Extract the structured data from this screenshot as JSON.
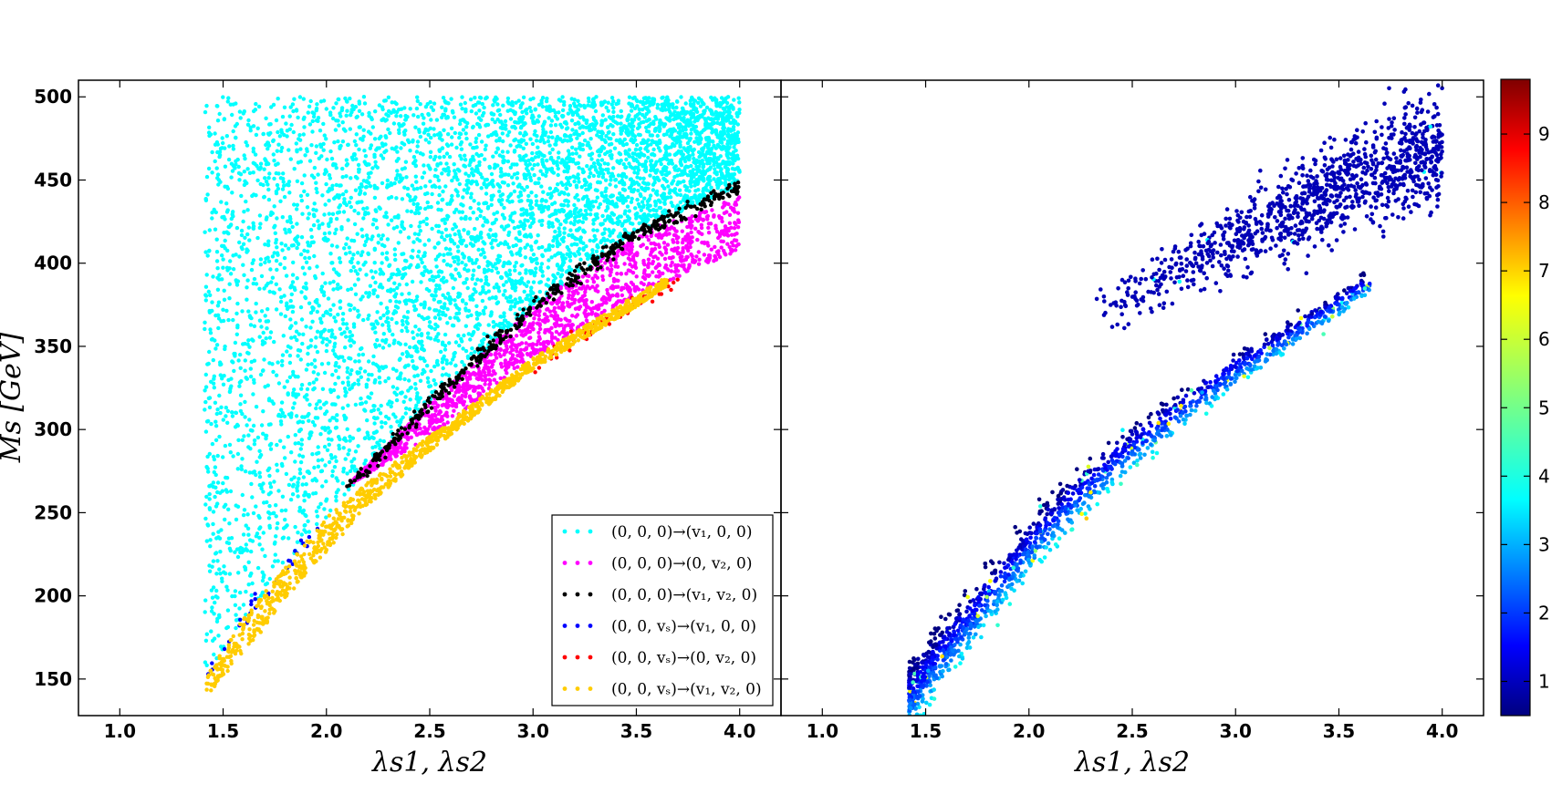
{
  "chart_data": [
    {
      "type": "scatter",
      "panel": "left",
      "xlabel": "λs1, λs2",
      "ylabel": "Ms [GeV]",
      "xlim": [
        0.8,
        4.2
      ],
      "ylim": [
        128,
        510
      ],
      "x_ticks": [
        "1.0",
        "1.5",
        "2.0",
        "2.5",
        "3.0",
        "3.5",
        "4.0"
      ],
      "y_ticks": [
        "150",
        "200",
        "250",
        "300",
        "350",
        "400",
        "450",
        "500"
      ],
      "legend_position": "bottom-right",
      "series": [
        {
          "name": "(0,0,0)→(v1,0,0)",
          "color": "#00ffff",
          "region": {
            "x": [
              1.41,
              4.0
            ],
            "y_upper": 500,
            "y_lower_curve": [
              [
                1.41,
                150
              ],
              [
                1.6,
                187
              ],
              [
                1.8,
                217
              ],
              [
                2.0,
                247
              ],
              [
                2.2,
                276
              ],
              [
                2.5,
                316
              ],
              [
                3.0,
                374
              ],
              [
                3.5,
                418
              ],
              [
                4.0,
                447
              ]
            ]
          }
        },
        {
          "name": "(0,0,0)→(0,v2,0)",
          "color": "#ff00ff",
          "region": {
            "x": [
              2.13,
              4.0
            ],
            "y_upper_curve": [
              [
                2.13,
                270
              ],
              [
                2.5,
                316
              ],
              [
                3.0,
                374
              ],
              [
                3.5,
                418
              ],
              [
                4.0,
                440
              ]
            ],
            "y_lower_curve": [
              [
                2.13,
                268
              ],
              [
                2.5,
                296
              ],
              [
                3.0,
                343
              ],
              [
                3.5,
                381
              ],
              [
                4.0,
                408
              ]
            ]
          }
        },
        {
          "name": "(0,0,0)→(v1,v2,0)",
          "color": "#000000",
          "band": [
            [
              2.1,
              266
            ],
            [
              2.2,
              276
            ],
            [
              2.5,
              316
            ],
            [
              3.0,
              374
            ],
            [
              3.5,
              418
            ],
            [
              4.0,
              446
            ]
          ]
        },
        {
          "name": "(0,0,vs)→(v1,0,0)",
          "color": "#0000ff",
          "band": [
            [
              1.42,
              152
            ],
            [
              1.6,
              187
            ],
            [
              1.8,
              217
            ],
            [
              2.0,
              247
            ]
          ]
        },
        {
          "name": "(0,0,vs)→(0,v2,0)",
          "color": "#ff0000",
          "band": [
            [
              3.0,
              338
            ],
            [
              3.2,
              354
            ],
            [
              3.5,
              376
            ],
            [
              3.7,
              390
            ]
          ]
        },
        {
          "name": "(0,0,vs)→(v1,v2,0)",
          "color": "#ffcc00",
          "region": {
            "x": [
              1.42,
              3.65
            ],
            "y_upper_curve": [
              [
                1.42,
                152
              ],
              [
                1.6,
                187
              ],
              [
                1.8,
                217
              ],
              [
                2.0,
                247
              ],
              [
                2.2,
                268
              ],
              [
                2.5,
                296
              ],
              [
                3.0,
                343
              ],
              [
                3.5,
                381
              ],
              [
                3.65,
                392
              ]
            ],
            "y_lower_curve": [
              [
                1.42,
                140
              ],
              [
                1.6,
                165
              ],
              [
                1.8,
                197
              ],
              [
                2.0,
                226
              ],
              [
                2.2,
                254
              ],
              [
                2.5,
                287
              ],
              [
                3.0,
                336
              ],
              [
                3.5,
                374
              ],
              [
                3.65,
                386
              ]
            ]
          }
        }
      ]
    },
    {
      "type": "scatter",
      "panel": "right",
      "xlabel": "λs1, λs2",
      "xlim": [
        0.8,
        4.2
      ],
      "ylim": [
        128,
        510
      ],
      "x_ticks": [
        "1.0",
        "1.5",
        "2.0",
        "2.5",
        "3.0",
        "3.5",
        "4.0"
      ],
      "colormap": "jet",
      "colorbar": {
        "range": [
          0.5,
          9.8
        ],
        "ticks": [
          "1",
          "2",
          "3",
          "4",
          "5",
          "6",
          "7",
          "8",
          "9"
        ]
      },
      "series": [
        {
          "cluster": "upper",
          "color_value": 1,
          "band": [
            [
              2.3,
              372
            ],
            [
              2.6,
              388
            ],
            [
              3.0,
              413
            ],
            [
              3.5,
              447
            ],
            [
              4.0,
              469
            ]
          ],
          "spread": 17
        },
        {
          "cluster": "lower",
          "color_value_range": [
            1.5,
            7
          ],
          "band": [
            [
              1.42,
              140
            ],
            [
              1.5,
              152
            ],
            [
              1.6,
              169
            ],
            [
              1.8,
              199
            ],
            [
              2.0,
              230
            ],
            [
              2.2,
              256
            ],
            [
              2.5,
              290
            ],
            [
              3.0,
              336
            ],
            [
              3.5,
              376
            ],
            [
              3.65,
              388
            ]
          ],
          "spread": 6
        }
      ]
    }
  ],
  "legend": {
    "entries": [
      {
        "text": "(0, 0, 0)→(v₁, 0, 0)",
        "color": "#00ffff"
      },
      {
        "text": "(0, 0, 0)→(0, v₂, 0)",
        "color": "#ff00ff"
      },
      {
        "text": "(0, 0, 0)→(v₁, v₂, 0)",
        "color": "#000000"
      },
      {
        "text": "(0, 0, vₛ)→(v₁, 0, 0)",
        "color": "#0000ff"
      },
      {
        "text": "(0, 0, vₛ)→(0, v₂, 0)",
        "color": "#ff0000"
      },
      {
        "text": "(0, 0, vₛ)→(v₁, v₂, 0)",
        "color": "#ffcc00"
      }
    ]
  },
  "labels": {
    "left_xlabel": "λs1, λs2",
    "right_xlabel": "λs1, λs2",
    "ylabel": "Ms [GeV]"
  }
}
